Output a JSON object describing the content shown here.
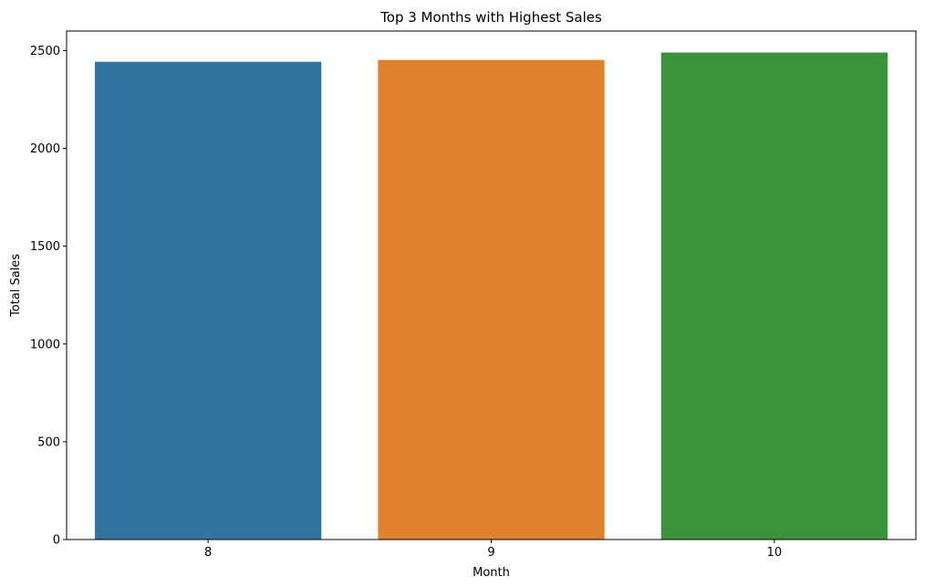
{
  "chart_data": {
    "type": "bar",
    "title": "Top 3 Months with Highest Sales",
    "xlabel": "Month",
    "ylabel": "Total Sales",
    "categories": [
      "8",
      "9",
      "10"
    ],
    "values": [
      2443,
      2452,
      2490
    ],
    "colors": [
      "#3274a1",
      "#e1812c",
      "#3a923a"
    ],
    "ylim": [
      0,
      2600
    ],
    "yticks": [
      0,
      500,
      1000,
      1500,
      2000,
      2500
    ],
    "ytick_labels": [
      "0",
      "500",
      "1000",
      "1500",
      "2000",
      "2500"
    ],
    "grid": false,
    "legend": "none"
  }
}
